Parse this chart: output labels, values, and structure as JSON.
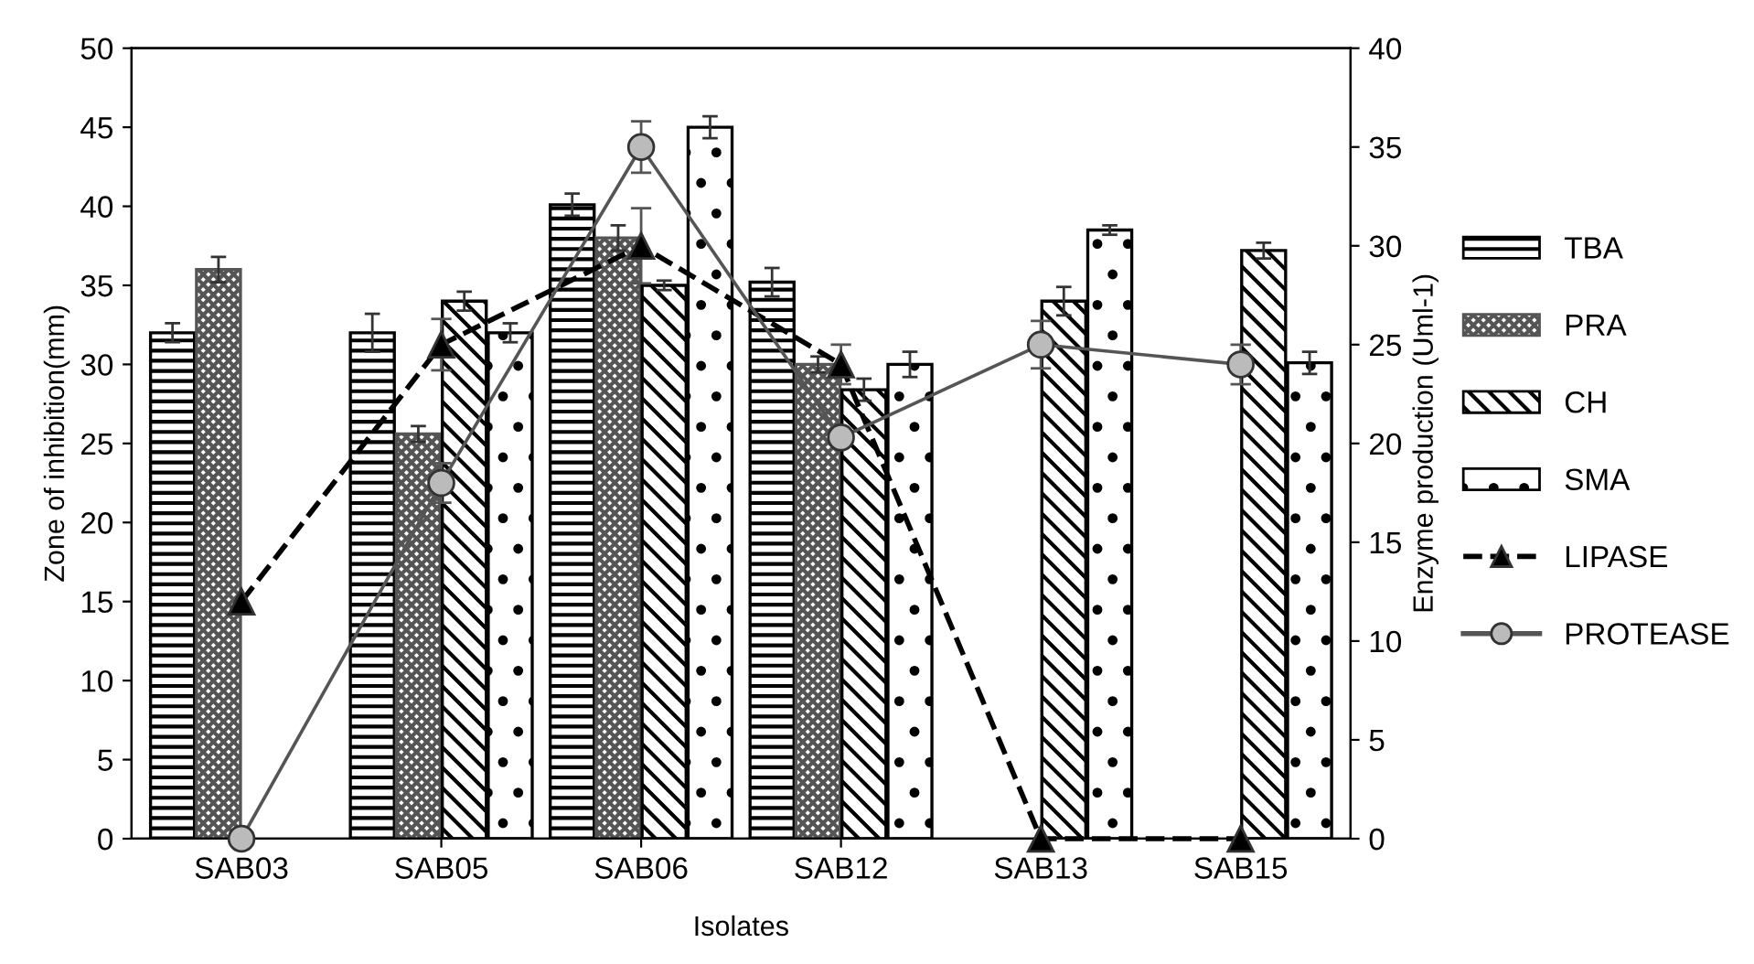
{
  "chart_data": {
    "type": "bar",
    "xlabel": "Isolates",
    "ylabel": "Zone of inhibition(mm)",
    "y2label": "Enzyme production (Uml-1)",
    "categories": [
      "SAB03",
      "SAB05",
      "SAB06",
      "SAB12",
      "SAB13",
      "SAB15"
    ],
    "ylim": [
      0,
      50
    ],
    "yticks": [
      0,
      5,
      10,
      15,
      20,
      25,
      30,
      35,
      40,
      45,
      50
    ],
    "y2lim": [
      0,
      40
    ],
    "y2ticks": [
      0,
      5,
      10,
      15,
      20,
      25,
      30,
      35,
      40
    ],
    "grid": false,
    "legend": "right",
    "series": [
      {
        "name": "TBA",
        "color": "#000000",
        "values": [
          32,
          32,
          40.1,
          35.2,
          null,
          null
        ],
        "errors": [
          0.6,
          1.2,
          0.7,
          0.9,
          null,
          null
        ]
      },
      {
        "name": "PRA",
        "color": "#555555",
        "values": [
          36,
          25.6,
          38,
          30,
          null,
          null
        ],
        "errors": [
          0.8,
          0.5,
          0.8,
          0.5,
          null,
          null
        ]
      },
      {
        "name": "CH",
        "color": "#000000",
        "values": [
          null,
          34,
          35,
          28.4,
          34,
          37.2
        ],
        "errors": [
          null,
          0.6,
          0.3,
          0.7,
          0.9,
          0.5
        ]
      },
      {
        "name": "SMA",
        "color": "#000000",
        "values": [
          null,
          32,
          45,
          30,
          38.5,
          30.1
        ],
        "errors": [
          null,
          0.6,
          0.7,
          0.8,
          0.3,
          0.7
        ]
      },
      {
        "name": "LIPASE",
        "type": "line",
        "axis": "y2",
        "color": "#000000",
        "marker": "triangle",
        "line_style": "dashed",
        "values": [
          12,
          25,
          30,
          24,
          0,
          0
        ],
        "errors": [
          null,
          1.3,
          1.9,
          1.0,
          null,
          null
        ]
      },
      {
        "name": "PROTEASE",
        "type": "line",
        "axis": "y2",
        "color": "#555555",
        "marker": "circle",
        "line_style": "solid",
        "values": [
          0,
          18,
          35,
          20.3,
          25,
          24
        ],
        "errors": [
          null,
          1.0,
          1.3,
          null,
          1.2,
          1.0
        ]
      }
    ]
  }
}
